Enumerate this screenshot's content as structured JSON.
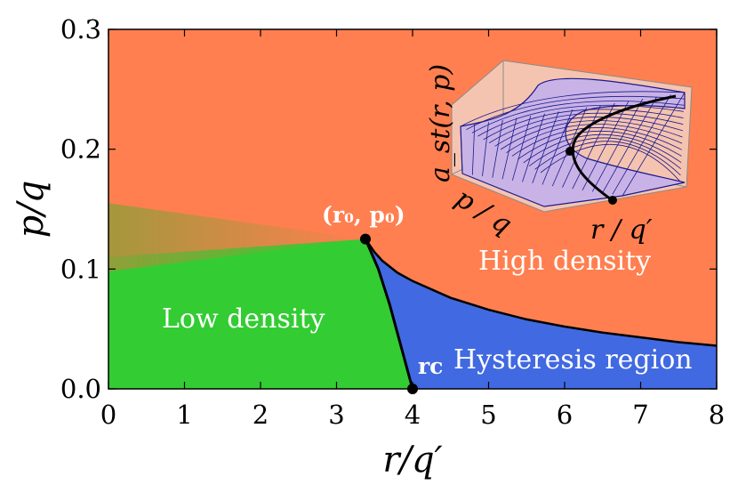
{
  "colors": {
    "high_density": "#ff7f50",
    "low_density": "#33cc33",
    "hysteresis": "#4169e1",
    "boundary": "#000000",
    "text_on_region": "#ffffff",
    "inset_surface": "#c9b3e6",
    "inset_mesh": "#1a1a8c",
    "inset_box": "#f5c4b0"
  },
  "chart_data": {
    "type": "area",
    "title": "",
    "xlabel": "r/q′",
    "ylabel": "p/q",
    "xlim": [
      0,
      8
    ],
    "ylim": [
      0,
      0.3
    ],
    "x_ticks": [
      "0",
      "1",
      "2",
      "3",
      "4",
      "5",
      "6",
      "7",
      "8"
    ],
    "y_ticks": [
      "0.0",
      "0.1",
      "0.2",
      "0.3"
    ],
    "grid": false,
    "legend": "none",
    "regions": [
      {
        "label": "High density"
      },
      {
        "label": "Low density"
      },
      {
        "label": "Hysteresis region"
      }
    ],
    "special_points": [
      {
        "label": "(r₀, p₀)",
        "x": 3.38,
        "y": 0.125
      },
      {
        "label": "rc",
        "x": 4.0,
        "y": 0.0
      }
    ],
    "boundary_low_to_hysteresis": {
      "x": [
        3.38,
        3.55,
        3.7,
        3.85,
        4.0
      ],
      "y": [
        0.125,
        0.1,
        0.07,
        0.035,
        0.0
      ]
    },
    "boundary_hysteresis_to_high": {
      "x": [
        3.38,
        3.5,
        3.6,
        3.8,
        4.0,
        4.5,
        5.0,
        5.5,
        6.0,
        6.5,
        7.0,
        7.5,
        8.0
      ],
      "y": [
        0.125,
        0.114,
        0.107,
        0.097,
        0.09,
        0.076,
        0.066,
        0.058,
        0.052,
        0.047,
        0.043,
        0.039,
        0.036
      ]
    },
    "boundary_low_to_high": {
      "x": [
        0,
        3.38
      ],
      "y": [
        0.11,
        0.125
      ]
    },
    "inset": {
      "zlabel": "a_st(r, p)",
      "xlabel": "r / q′",
      "ylabel": "p / q"
    }
  }
}
